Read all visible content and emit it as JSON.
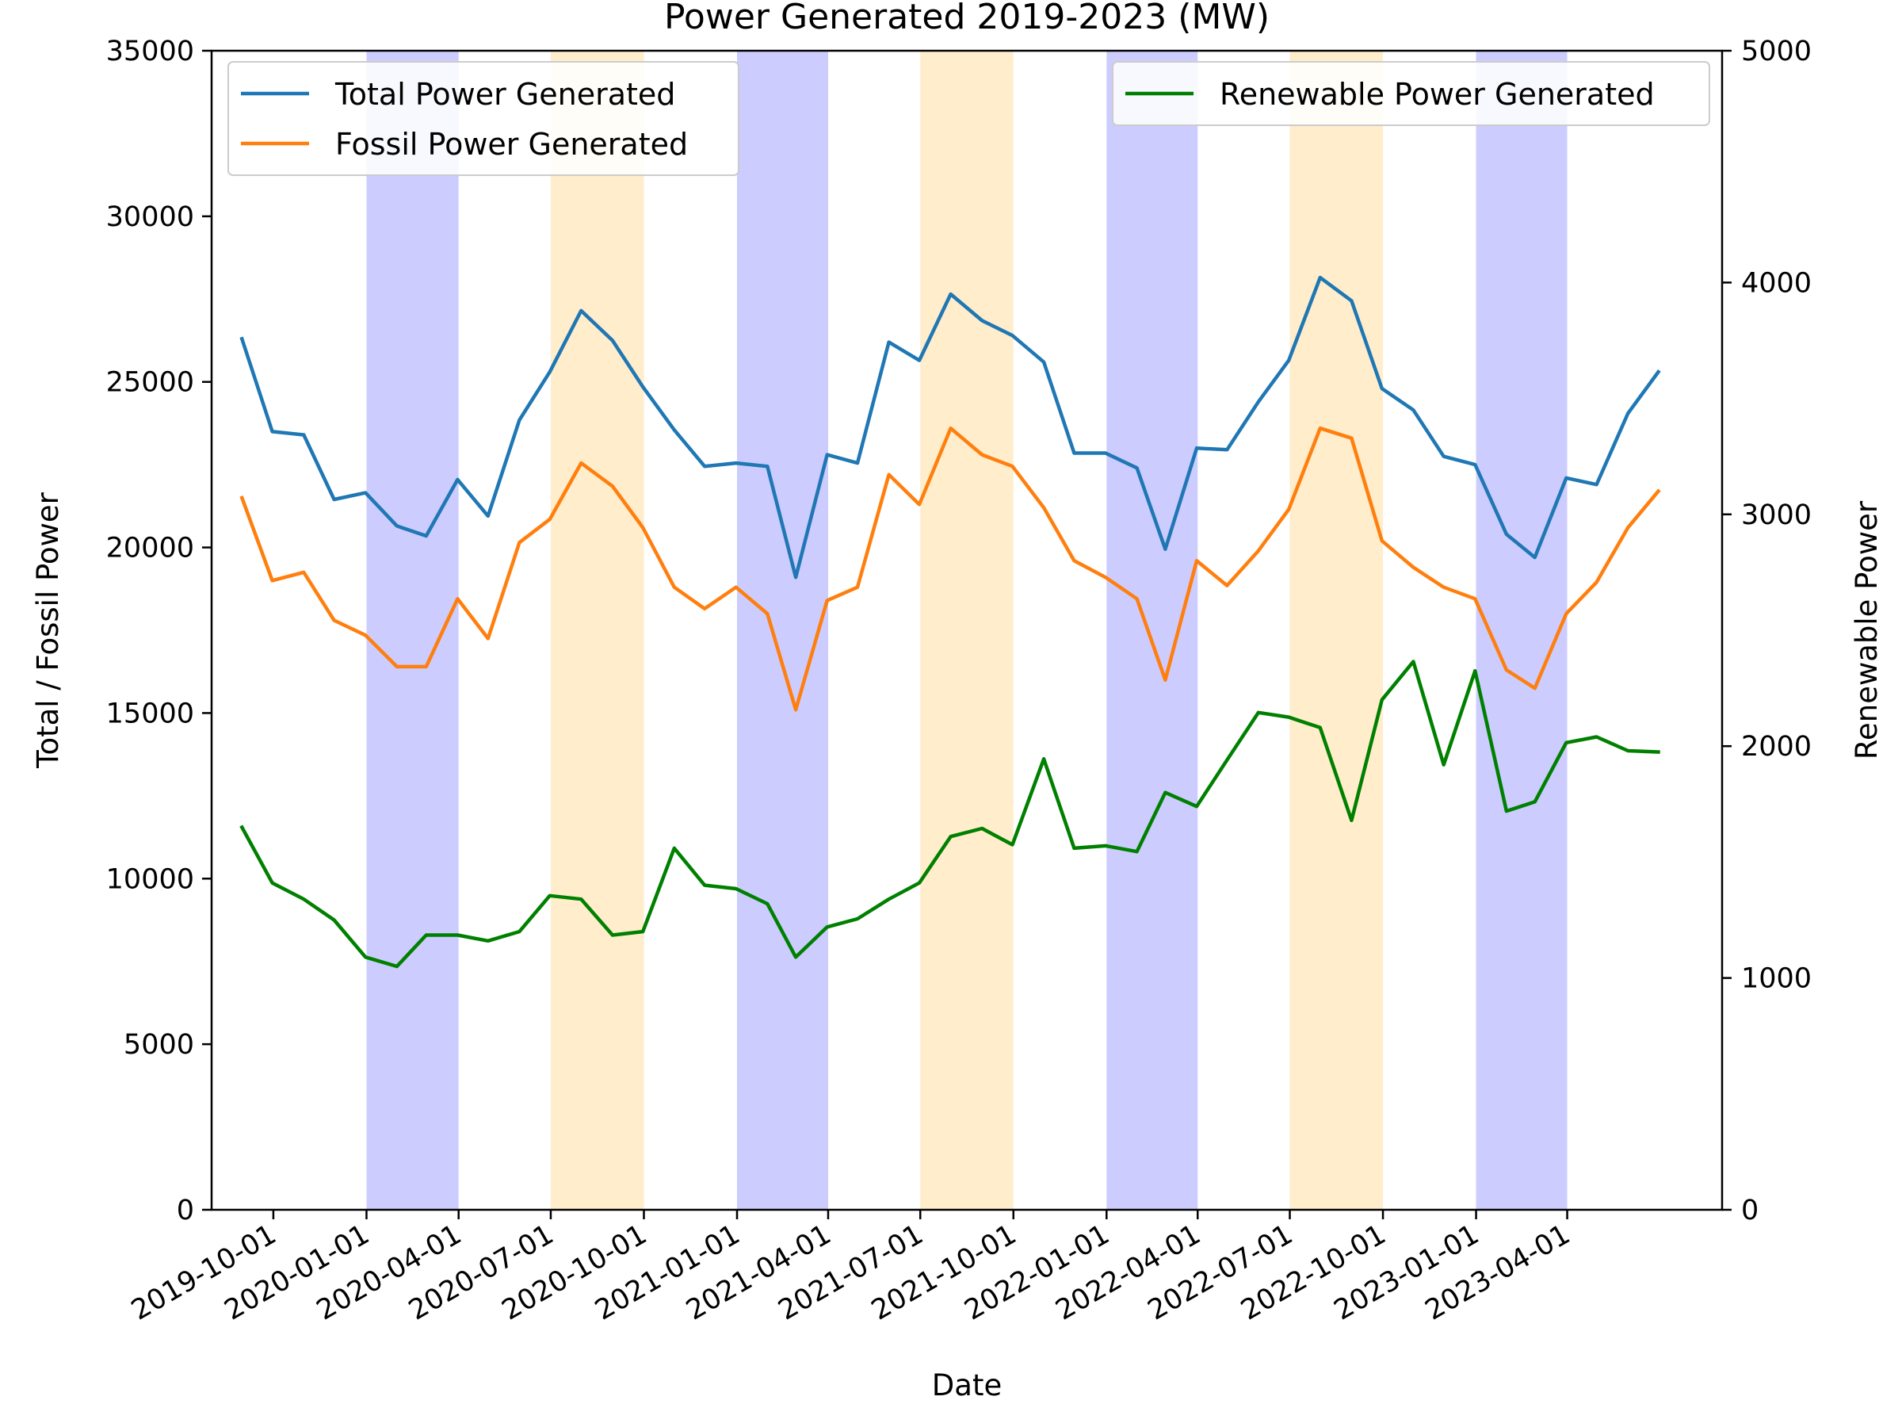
{
  "chart_data": {
    "type": "line",
    "title": "Power Generated 2019-2023 (MW)",
    "xlabel": "Date",
    "ylabel_left": "Total / Fossil Power",
    "ylabel_right": "Renewable Power",
    "ylim_left": [
      0,
      35000
    ],
    "ylim_right": [
      0,
      5000
    ],
    "yticks_left": [
      "0",
      "5000",
      "10000",
      "15000",
      "20000",
      "25000",
      "30000",
      "35000"
    ],
    "yticks_right": [
      "0",
      "1000",
      "2000",
      "3000",
      "4000",
      "5000"
    ],
    "xlim": [
      "2019-08-01",
      "2023-09-01"
    ],
    "xticks": [
      "2019-10-01",
      "2020-01-01",
      "2020-04-01",
      "2020-07-01",
      "2020-10-01",
      "2021-01-01",
      "2021-04-01",
      "2021-07-01",
      "2021-10-01",
      "2022-01-01",
      "2022-04-01",
      "2022-07-01",
      "2022-10-01",
      "2023-01-01",
      "2023-04-01"
    ],
    "shaded_periods": [
      {
        "start": "2020-01-01",
        "end": "2020-04-01",
        "color": "#ccccff"
      },
      {
        "start": "2020-07-01",
        "end": "2020-10-01",
        "color": "#ffedcc"
      },
      {
        "start": "2021-01-01",
        "end": "2021-04-01",
        "color": "#ccccff"
      },
      {
        "start": "2021-07-01",
        "end": "2021-10-01",
        "color": "#ffedcc"
      },
      {
        "start": "2022-01-01",
        "end": "2022-04-01",
        "color": "#ccccff"
      },
      {
        "start": "2022-07-01",
        "end": "2022-10-01",
        "color": "#ffedcc"
      },
      {
        "start": "2023-01-01",
        "end": "2023-04-01",
        "color": "#ccccff"
      }
    ],
    "x": [
      "2019-08-31",
      "2019-09-30",
      "2019-10-31",
      "2019-11-30",
      "2019-12-31",
      "2020-01-31",
      "2020-02-29",
      "2020-03-31",
      "2020-04-30",
      "2020-05-31",
      "2020-06-30",
      "2020-07-31",
      "2020-08-31",
      "2020-09-30",
      "2020-10-31",
      "2020-11-30",
      "2020-12-31",
      "2021-01-31",
      "2021-02-28",
      "2021-03-31",
      "2021-04-30",
      "2021-05-31",
      "2021-06-30",
      "2021-07-31",
      "2021-08-31",
      "2021-09-30",
      "2021-10-31",
      "2021-11-30",
      "2021-12-31",
      "2022-01-31",
      "2022-02-28",
      "2022-03-31",
      "2022-04-30",
      "2022-05-31",
      "2022-06-30",
      "2022-07-31",
      "2022-08-31",
      "2022-09-30",
      "2022-10-31",
      "2022-11-30",
      "2022-12-31",
      "2023-01-31",
      "2023-02-28",
      "2023-03-31",
      "2023-04-30",
      "2023-05-31",
      "2023-06-30"
    ],
    "series": [
      {
        "name": "Total Power Generated",
        "axis": "left",
        "color": "#1f77b4",
        "values": [
          26300,
          23500,
          23400,
          21450,
          21650,
          20650,
          20350,
          22050,
          20950,
          23850,
          25300,
          27150,
          26250,
          24850,
          23550,
          22450,
          22550,
          22450,
          19100,
          22800,
          22550,
          26200,
          25650,
          27650,
          26850,
          26400,
          25600,
          22850,
          22850,
          22400,
          19950,
          23000,
          22950,
          24400,
          25650,
          28150,
          27450,
          24800,
          24150,
          22750,
          22500,
          20400,
          19700,
          22100,
          21900,
          24050,
          25300
        ]
      },
      {
        "name": "Fossil Power Generated",
        "axis": "left",
        "color": "#ff7f0e",
        "values": [
          21500,
          19000,
          19250,
          17800,
          17350,
          16400,
          16400,
          18450,
          17250,
          20150,
          20850,
          22550,
          21850,
          20600,
          18800,
          18150,
          18800,
          18000,
          15100,
          18400,
          18800,
          22200,
          21300,
          23600,
          22800,
          22450,
          21200,
          19600,
          19100,
          18450,
          16000,
          19600,
          18850,
          19900,
          21150,
          23600,
          23300,
          20200,
          19400,
          18800,
          18450,
          16300,
          15750,
          18000,
          18950,
          20600,
          21700
        ]
      },
      {
        "name": "Renewable Power Generated",
        "axis": "right",
        "color": "#008000",
        "values": [
          1650,
          1410,
          1340,
          1250,
          1090,
          1050,
          1185,
          1185,
          1160,
          1200,
          1355,
          1340,
          1185,
          1200,
          1560,
          1400,
          1385,
          1320,
          1090,
          1220,
          1255,
          1340,
          1410,
          1610,
          1645,
          1575,
          1945,
          1560,
          1570,
          1545,
          1800,
          1740,
          1940,
          2145,
          2125,
          2080,
          1680,
          2200,
          2365,
          1920,
          2325,
          1720,
          1760,
          2015,
          2040,
          1980,
          1975
        ]
      }
    ],
    "legend_left": {
      "placement": "upper-left",
      "entries": [
        "Total Power Generated",
        "Fossil Power Generated"
      ]
    },
    "legend_right": {
      "placement": "upper-right",
      "entries": [
        "Renewable Power Generated"
      ]
    },
    "grid": false
  }
}
